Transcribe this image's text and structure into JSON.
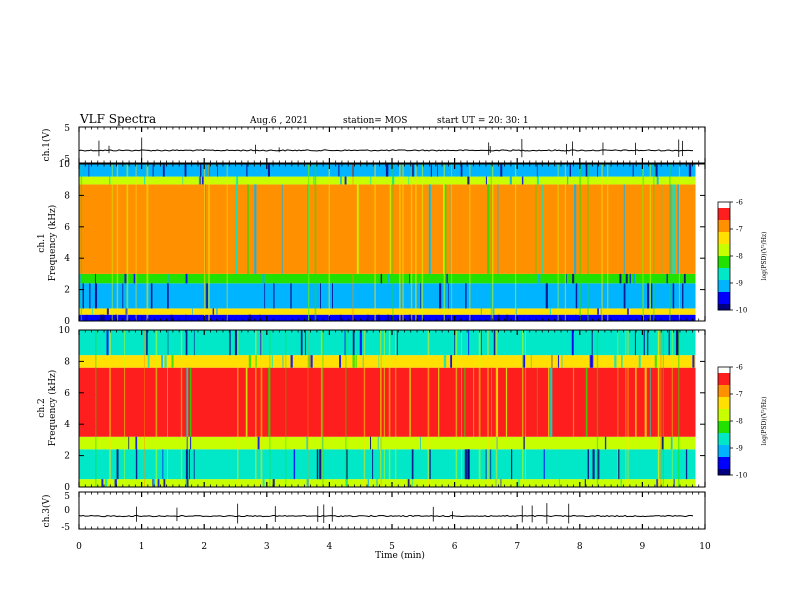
{
  "header": {
    "title": "VLF Spectra",
    "date": "Aug.6 , 2021",
    "station": "station= MOS",
    "start": "start UT = 20: 30: 1"
  },
  "chart_data": [
    {
      "type": "line",
      "name": "ch1-waveform",
      "ylabel": "ch.1(V)",
      "ylim": [
        -5,
        5
      ],
      "yticks": [
        "5",
        "-5"
      ],
      "xlim": [
        0,
        10
      ],
      "baseline": -1.5
    },
    {
      "type": "heatmap",
      "name": "ch1-spectrogram",
      "ylabel": "ch.1\nFrequency (kHz)",
      "ylim": [
        0,
        10
      ],
      "yticks": [
        "0",
        "2",
        "4",
        "6",
        "8",
        "10"
      ],
      "xlim": [
        0,
        9.85
      ],
      "bands_khz": [
        {
          "from": 0,
          "to": 0.4,
          "level": -9.5
        },
        {
          "from": 0.4,
          "to": 0.8,
          "level": -7.5
        },
        {
          "from": 0.8,
          "to": 2.4,
          "level": -9.3
        },
        {
          "from": 2.4,
          "to": 3.0,
          "level": -8.2
        },
        {
          "from": 3.0,
          "to": 8.7,
          "level": -6.9
        },
        {
          "from": 8.7,
          "to": 9.2,
          "level": -7.8
        },
        {
          "from": 9.2,
          "to": 10,
          "level": -9.0
        }
      ],
      "colorbar": {
        "label": "log(PSD)(V²/Hz)",
        "ticks": [
          "-6",
          "-7",
          "-8",
          "-9",
          "-10"
        ],
        "range": [
          -10,
          -6
        ]
      }
    },
    {
      "type": "heatmap",
      "name": "ch2-spectrogram",
      "ylabel": "ch.2\nFrequency (kHz)",
      "ylim": [
        0,
        10
      ],
      "yticks": [
        "0",
        "2",
        "4",
        "6",
        "8",
        "10"
      ],
      "xlim": [
        0,
        9.85
      ],
      "bands_khz": [
        {
          "from": 0,
          "to": 0.5,
          "level": -7.8
        },
        {
          "from": 0.5,
          "to": 2.4,
          "level": -8.8
        },
        {
          "from": 2.4,
          "to": 3.2,
          "level": -7.8
        },
        {
          "from": 3.2,
          "to": 7.6,
          "level": -6.3
        },
        {
          "from": 7.6,
          "to": 8.4,
          "level": -7.4
        },
        {
          "from": 8.4,
          "to": 10,
          "level": -8.6
        }
      ],
      "colorbar": {
        "label": "log(PSD)(V²/Hz)",
        "ticks": [
          "-6",
          "-7",
          "-8",
          "-9",
          "-10"
        ],
        "range": [
          -10,
          -6
        ]
      }
    },
    {
      "type": "line",
      "name": "ch3-waveform",
      "ylabel": "ch.3(V)",
      "ylim": [
        -5,
        5
      ],
      "yticks": [
        "5",
        "0",
        "-5"
      ],
      "xlim": [
        0,
        10
      ],
      "baseline": -1.5
    }
  ],
  "xaxis": {
    "label": "Time (min)",
    "ticks": [
      "0",
      "1",
      "2",
      "3",
      "4",
      "5",
      "6",
      "7",
      "8",
      "9",
      "10"
    ]
  },
  "colors": {
    "colormap": [
      "#000080",
      "#0000ff",
      "#00b4ff",
      "#00e8c8",
      "#22e000",
      "#c8ff00",
      "#ffe000",
      "#ff9000",
      "#ff1e1e",
      "#ffffff"
    ]
  }
}
